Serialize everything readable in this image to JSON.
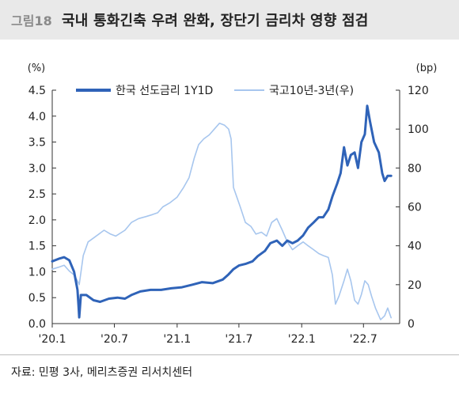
{
  "header": {
    "figure_no": "그림18",
    "title": "국내 통화긴축 우려 완화, 장단기 금리차 영향 점검"
  },
  "source": "자료: 민평 3사, 메리츠증권 리서치센터",
  "colors": {
    "series1": "#2f63b8",
    "series2": "#a7c6ee",
    "axis": "#333333"
  },
  "chart_data": {
    "type": "line",
    "left_unit": "(%)",
    "right_unit": "(bp)",
    "y_left": {
      "min": 0.0,
      "max": 4.5,
      "ticks": [
        "0.0",
        "0.5",
        "1.0",
        "1.5",
        "2.0",
        "2.5",
        "3.0",
        "3.5",
        "4.0",
        "4.5"
      ]
    },
    "y_right": {
      "min": 0,
      "max": 120,
      "ticks": [
        "0",
        "20",
        "40",
        "60",
        "80",
        "100",
        "120"
      ]
    },
    "x_range": [
      "2020-01-01",
      "2022-10-15"
    ],
    "x_ticks": [
      {
        "date": "2020-01-01",
        "label": "'20.1"
      },
      {
        "date": "2020-07-01",
        "label": "'20.7"
      },
      {
        "date": "2021-01-01",
        "label": "'21.1"
      },
      {
        "date": "2021-07-01",
        "label": "'21.7"
      },
      {
        "date": "2022-01-01",
        "label": "'22.1"
      },
      {
        "date": "2022-07-01",
        "label": "'22.7"
      }
    ],
    "grid": false,
    "legend_position": "top",
    "series": [
      {
        "name": "한국 선도금리  1Y1D",
        "axis": "left",
        "color": "#2f63b8",
        "points": [
          [
            "2020-01-01",
            1.2
          ],
          [
            "2020-01-20",
            1.25
          ],
          [
            "2020-02-05",
            1.28
          ],
          [
            "2020-02-20",
            1.22
          ],
          [
            "2020-03-05",
            1.0
          ],
          [
            "2020-03-15",
            0.65
          ],
          [
            "2020-03-18",
            0.35
          ],
          [
            "2020-03-20",
            0.12
          ],
          [
            "2020-03-25",
            0.55
          ],
          [
            "2020-04-10",
            0.55
          ],
          [
            "2020-05-01",
            0.45
          ],
          [
            "2020-05-20",
            0.42
          ],
          [
            "2020-06-15",
            0.48
          ],
          [
            "2020-07-10",
            0.5
          ],
          [
            "2020-08-01",
            0.48
          ],
          [
            "2020-08-20",
            0.55
          ],
          [
            "2020-09-15",
            0.62
          ],
          [
            "2020-10-15",
            0.65
          ],
          [
            "2020-11-15",
            0.65
          ],
          [
            "2020-12-15",
            0.68
          ],
          [
            "2021-01-15",
            0.7
          ],
          [
            "2021-02-15",
            0.75
          ],
          [
            "2021-03-15",
            0.8
          ],
          [
            "2021-04-15",
            0.78
          ],
          [
            "2021-05-15",
            0.85
          ],
          [
            "2021-06-01",
            0.95
          ],
          [
            "2021-06-15",
            1.05
          ],
          [
            "2021-07-01",
            1.12
          ],
          [
            "2021-07-20",
            1.15
          ],
          [
            "2021-08-10",
            1.2
          ],
          [
            "2021-08-25",
            1.3
          ],
          [
            "2021-09-15",
            1.4
          ],
          [
            "2021-10-01",
            1.55
          ],
          [
            "2021-10-20",
            1.6
          ],
          [
            "2021-11-05",
            1.5
          ],
          [
            "2021-11-20",
            1.6
          ],
          [
            "2021-12-05",
            1.55
          ],
          [
            "2021-12-20",
            1.6
          ],
          [
            "2022-01-05",
            1.7
          ],
          [
            "2022-01-20",
            1.85
          ],
          [
            "2022-02-05",
            1.95
          ],
          [
            "2022-02-20",
            2.05
          ],
          [
            "2022-03-05",
            2.05
          ],
          [
            "2022-03-20",
            2.2
          ],
          [
            "2022-04-01",
            2.45
          ],
          [
            "2022-04-15",
            2.7
          ],
          [
            "2022-04-25",
            2.9
          ],
          [
            "2022-05-05",
            3.4
          ],
          [
            "2022-05-15",
            3.05
          ],
          [
            "2022-05-25",
            3.25
          ],
          [
            "2022-06-05",
            3.3
          ],
          [
            "2022-06-15",
            3.0
          ],
          [
            "2022-06-25",
            3.5
          ],
          [
            "2022-07-05",
            3.65
          ],
          [
            "2022-07-12",
            4.2
          ],
          [
            "2022-07-20",
            3.9
          ],
          [
            "2022-08-01",
            3.5
          ],
          [
            "2022-08-15",
            3.3
          ],
          [
            "2022-08-25",
            2.9
          ],
          [
            "2022-09-01",
            2.75
          ],
          [
            "2022-09-10",
            2.85
          ],
          [
            "2022-09-20",
            2.85
          ]
        ]
      },
      {
        "name": "국고10년-3년(우)",
        "axis": "right",
        "color": "#a7c6ee",
        "points": [
          [
            "2020-01-01",
            28
          ],
          [
            "2020-01-20",
            29
          ],
          [
            "2020-02-05",
            30
          ],
          [
            "2020-02-20",
            27
          ],
          [
            "2020-03-05",
            25
          ],
          [
            "2020-03-15",
            22
          ],
          [
            "2020-03-20",
            20
          ],
          [
            "2020-04-01",
            35
          ],
          [
            "2020-04-15",
            42
          ],
          [
            "2020-05-01",
            44
          ],
          [
            "2020-06-01",
            48
          ],
          [
            "2020-06-20",
            46
          ],
          [
            "2020-07-05",
            45
          ],
          [
            "2020-08-01",
            48
          ],
          [
            "2020-08-20",
            52
          ],
          [
            "2020-09-10",
            54
          ],
          [
            "2020-10-01",
            55
          ],
          [
            "2020-10-20",
            56
          ],
          [
            "2020-11-05",
            57
          ],
          [
            "2020-11-20",
            60
          ],
          [
            "2020-12-10",
            62
          ],
          [
            "2021-01-01",
            65
          ],
          [
            "2021-01-20",
            70
          ],
          [
            "2021-02-05",
            75
          ],
          [
            "2021-02-20",
            85
          ],
          [
            "2021-03-05",
            92
          ],
          [
            "2021-03-20",
            95
          ],
          [
            "2021-04-05",
            97
          ],
          [
            "2021-04-20",
            100
          ],
          [
            "2021-05-05",
            103
          ],
          [
            "2021-05-20",
            102
          ],
          [
            "2021-06-01",
            100
          ],
          [
            "2021-06-08",
            95
          ],
          [
            "2021-06-15",
            70
          ],
          [
            "2021-06-25",
            65
          ],
          [
            "2021-07-05",
            60
          ],
          [
            "2021-07-20",
            52
          ],
          [
            "2021-08-05",
            50
          ],
          [
            "2021-08-20",
            46
          ],
          [
            "2021-09-05",
            47
          ],
          [
            "2021-09-20",
            45
          ],
          [
            "2021-10-05",
            52
          ],
          [
            "2021-10-20",
            54
          ],
          [
            "2021-11-05",
            48
          ],
          [
            "2021-11-20",
            42
          ],
          [
            "2021-12-05",
            38
          ],
          [
            "2021-12-20",
            40
          ],
          [
            "2022-01-05",
            42
          ],
          [
            "2022-01-20",
            40
          ],
          [
            "2022-02-05",
            38
          ],
          [
            "2022-02-20",
            36
          ],
          [
            "2022-03-05",
            35
          ],
          [
            "2022-03-20",
            34
          ],
          [
            "2022-04-01",
            25
          ],
          [
            "2022-04-10",
            10
          ],
          [
            "2022-04-20",
            14
          ],
          [
            "2022-05-05",
            22
          ],
          [
            "2022-05-15",
            28
          ],
          [
            "2022-05-25",
            22
          ],
          [
            "2022-06-05",
            12
          ],
          [
            "2022-06-15",
            10
          ],
          [
            "2022-06-25",
            15
          ],
          [
            "2022-07-05",
            22
          ],
          [
            "2022-07-15",
            20
          ],
          [
            "2022-07-25",
            14
          ],
          [
            "2022-08-05",
            8
          ],
          [
            "2022-08-20",
            2
          ],
          [
            "2022-09-01",
            4
          ],
          [
            "2022-09-10",
            8
          ],
          [
            "2022-09-20",
            3
          ]
        ]
      }
    ]
  }
}
